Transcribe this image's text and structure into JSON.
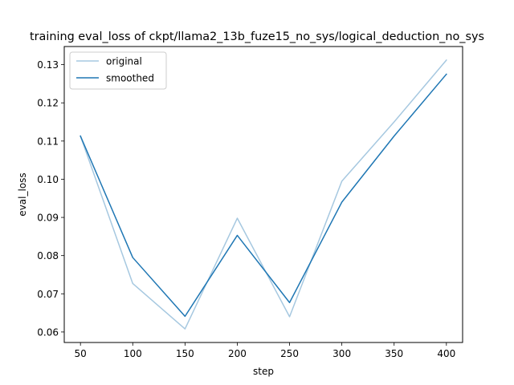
{
  "chart_data": {
    "type": "line",
    "title": "training eval_loss of ckpt/llama2_13b_fuze15_no_sys/logical_deduction_no_sys",
    "xlabel": "step",
    "ylabel": "eval_loss",
    "x": [
      50,
      100,
      150,
      200,
      250,
      300,
      350,
      400
    ],
    "xlim": [
      34.5,
      415.5
    ],
    "ylim": [
      0.05725,
      0.13475
    ],
    "xticks": [
      50,
      100,
      150,
      200,
      250,
      300,
      350,
      400
    ],
    "yticks": [
      0.06,
      0.07,
      0.08,
      0.09,
      0.1,
      0.11,
      0.12,
      0.13
    ],
    "ytick_labels": [
      "0.06",
      "0.07",
      "0.08",
      "0.09",
      "0.10",
      "0.11",
      "0.12",
      "0.13"
    ],
    "grid": false,
    "legend_position": "top-left",
    "series": [
      {
        "name": "original",
        "color": "#a6c8e0",
        "values": [
          0.1113,
          0.0727,
          0.0608,
          0.0898,
          0.064,
          0.0995,
          0.115,
          0.1312
        ]
      },
      {
        "name": "smoothed",
        "color": "#1f77b4",
        "values": [
          0.1113,
          0.0795,
          0.0641,
          0.0853,
          0.0677,
          0.094,
          0.1113,
          0.1275
        ]
      }
    ]
  }
}
